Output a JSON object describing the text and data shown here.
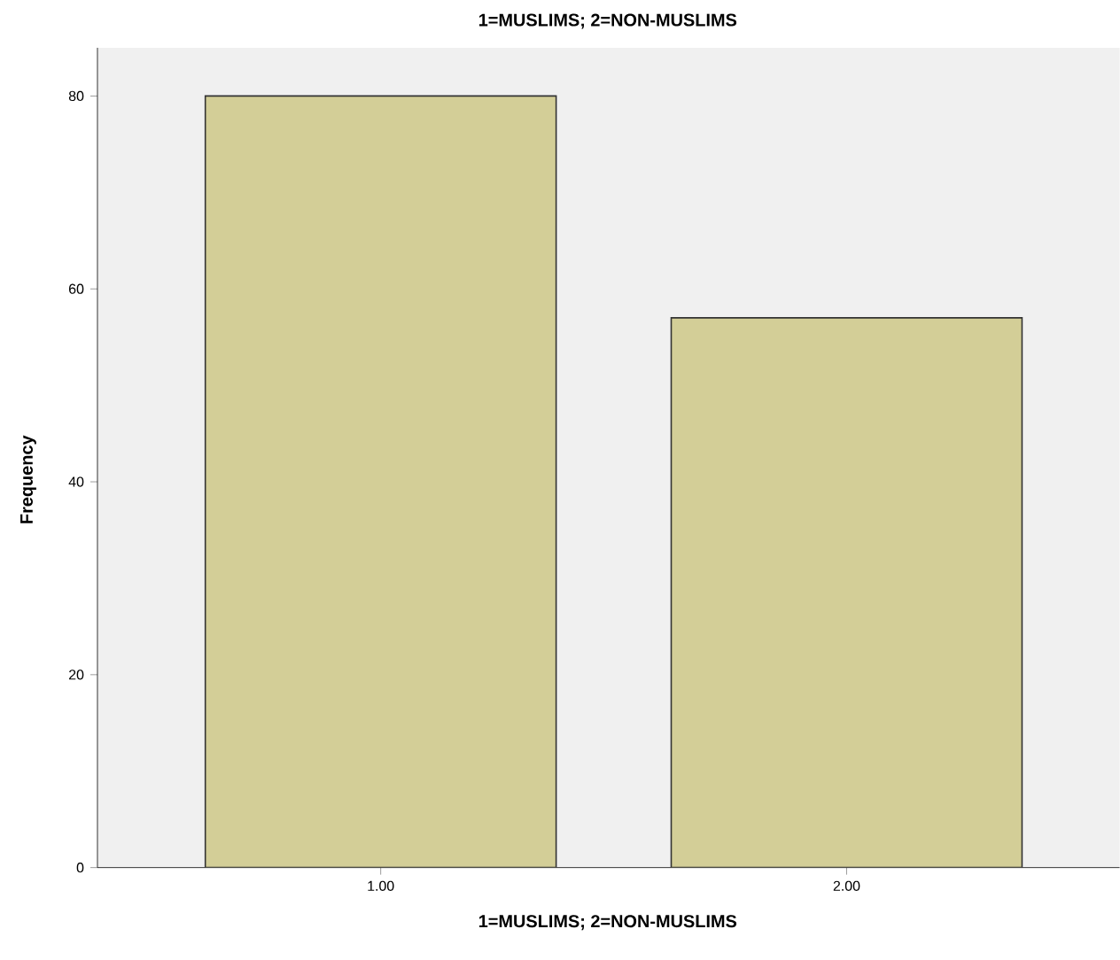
{
  "chart_data": {
    "type": "bar",
    "title": "1=MUSLIMS; 2=NON-MUSLIMS",
    "xlabel": "1=MUSLIMS; 2=NON-MUSLIMS",
    "ylabel": "Frequency",
    "categories": [
      "1.00",
      "2.00"
    ],
    "values": [
      80,
      57
    ],
    "color": "#d3ce97",
    "ylim": [
      0,
      85
    ],
    "yticks": [
      0,
      20,
      40,
      60,
      80
    ]
  }
}
